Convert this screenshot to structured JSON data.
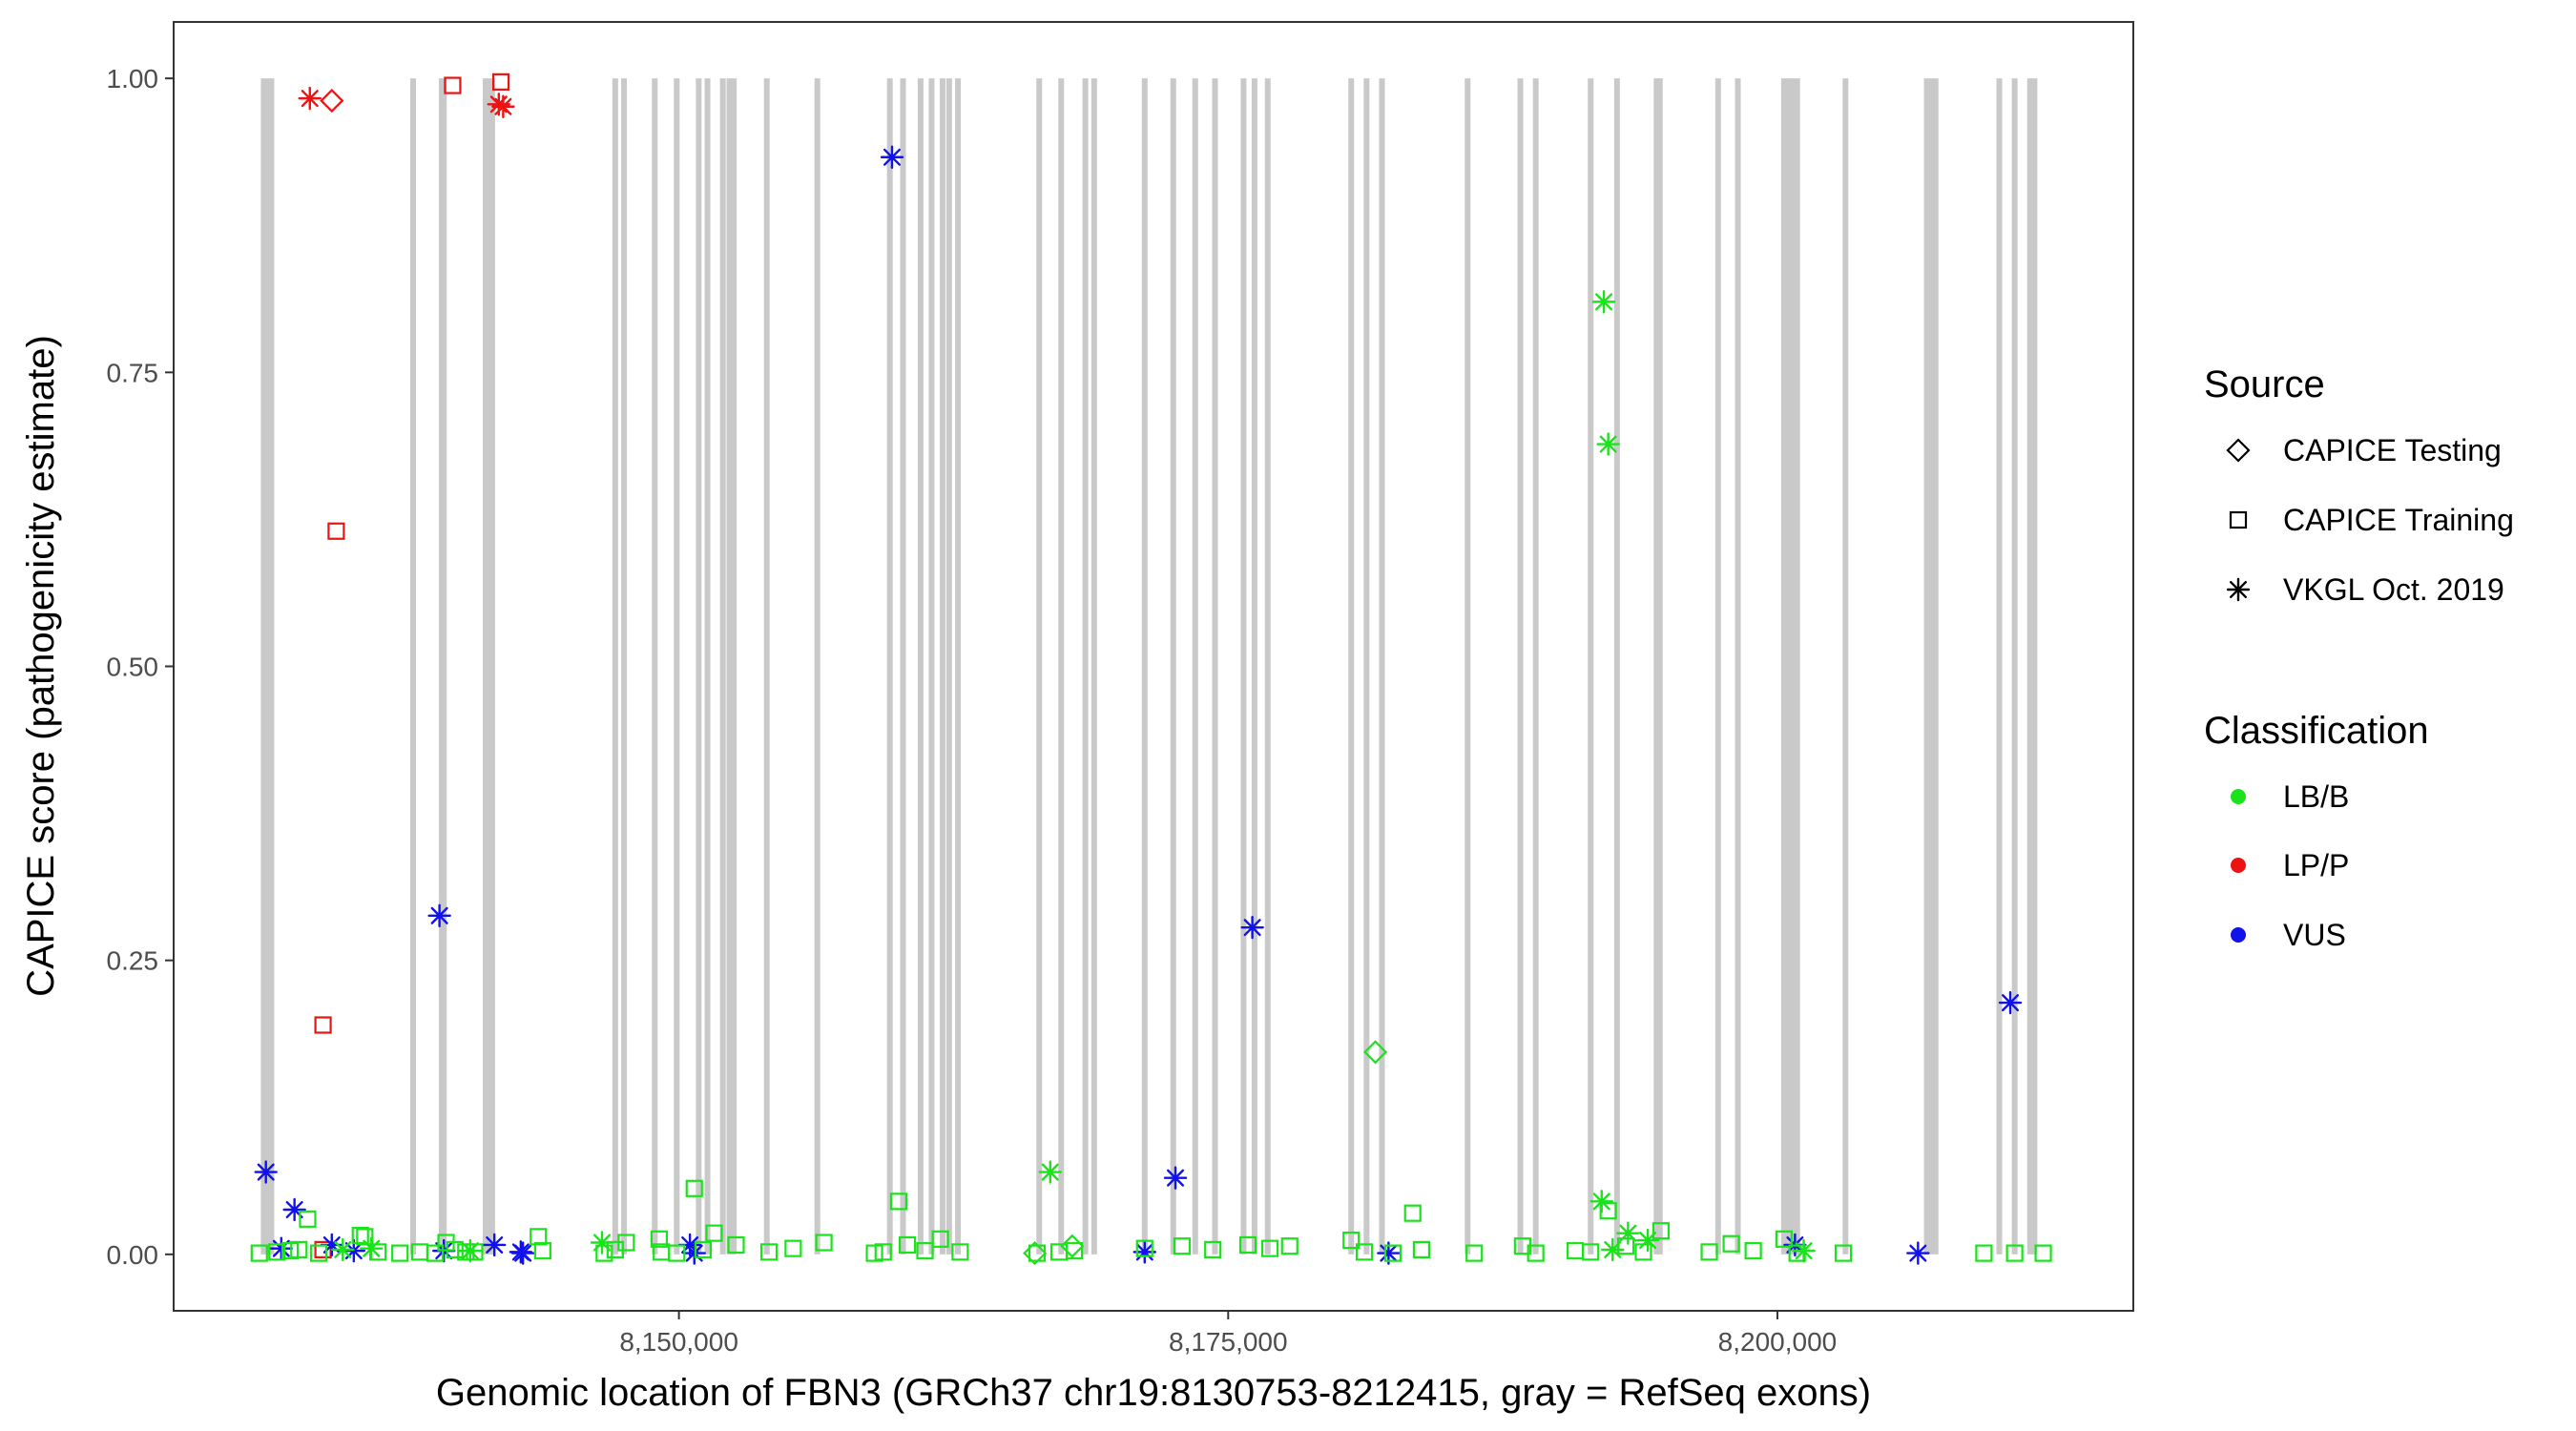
{
  "chart_data": {
    "type": "scatter",
    "xlabel": "Genomic location of FBN3 (GRCh37 chr19:8130753-8212415, gray = RefSeq exons)",
    "ylabel": "CAPICE score (pathogenicity estimate)",
    "xlim": [
      8127000,
      8216200
    ],
    "ylim": [
      -0.048,
      1.048
    ],
    "x_ticks": [
      {
        "value": 8150000,
        "label": "8,150,000"
      },
      {
        "value": 8175000,
        "label": "8,175,000"
      },
      {
        "value": 8200000,
        "label": "8,200,000"
      }
    ],
    "y_ticks": [
      {
        "value": 0.0,
        "label": "0.00"
      },
      {
        "value": 0.25,
        "label": "0.25"
      },
      {
        "value": 0.5,
        "label": "0.50"
      },
      {
        "value": 0.75,
        "label": "0.75"
      },
      {
        "value": 1.0,
        "label": "1.00"
      }
    ],
    "grid": false,
    "legend_placement": "right",
    "exons": [
      8131100,
      8131300,
      8131450,
      8137900,
      8139200,
      8139300,
      8141200,
      8141350,
      8141500,
      8147100,
      8147500,
      8148900,
      8149900,
      8150900,
      8151300,
      8152000,
      8152300,
      8152500,
      8154000,
      8156300,
      8159600,
      8160200,
      8161000,
      8161500,
      8162000,
      8162300,
      8162700,
      8166400,
      8167400,
      8168500,
      8168900,
      8171200,
      8172500,
      8173500,
      8174400,
      8175700,
      8176200,
      8176800,
      8180600,
      8181300,
      8182000,
      8185900,
      8188300,
      8189000,
      8191500,
      8192700,
      8194500,
      8194650,
      8197300,
      8198200,
      8200300,
      8200500,
      8200700,
      8200900,
      8203100,
      8206800,
      8207000,
      8207200,
      8210100,
      8210800,
      8211500,
      8211700
    ],
    "legend": {
      "source_title": "Source",
      "source_items": [
        {
          "shape": "diamond",
          "label": "CAPICE Testing"
        },
        {
          "shape": "square",
          "label": "CAPICE Training"
        },
        {
          "shape": "asterisk",
          "label": "VKGL Oct. 2019"
        }
      ],
      "class_title": "Classification",
      "class_items": [
        {
          "key": "LB/B",
          "label": "LB/B",
          "color": "#1be31b"
        },
        {
          "key": "LP/P",
          "label": "LP/P",
          "color": "#ec1313"
        },
        {
          "key": "VUS",
          "label": "VUS",
          "color": "#1111ec"
        }
      ]
    },
    "series": [
      {
        "classification": "LP/P",
        "source": "CAPICE Testing",
        "points": [
          [
            8134200,
            0.981
          ]
        ]
      },
      {
        "classification": "LP/P",
        "source": "CAPICE Training",
        "points": [
          [
            8139700,
            0.994
          ],
          [
            8141900,
            0.997
          ],
          [
            8134400,
            0.615
          ],
          [
            8133800,
            0.195
          ],
          [
            8133800,
            0.004
          ]
        ]
      },
      {
        "classification": "LP/P",
        "source": "VKGL Oct. 2019",
        "points": [
          [
            8133200,
            0.983
          ],
          [
            8141800,
            0.978
          ],
          [
            8142000,
            0.976
          ]
        ]
      },
      {
        "classification": "VUS",
        "source": "VKGL Oct. 2019",
        "points": [
          [
            8131200,
            0.07
          ],
          [
            8131900,
            0.005
          ],
          [
            8132500,
            0.038
          ],
          [
            8134200,
            0.008
          ],
          [
            8135200,
            0.003
          ],
          [
            8139100,
            0.288
          ],
          [
            8139300,
            0.003
          ],
          [
            8141600,
            0.008
          ],
          [
            8142800,
            0.002
          ],
          [
            8142900,
            0.001
          ],
          [
            8150500,
            0.008
          ],
          [
            8150700,
            0.001
          ],
          [
            8159700,
            0.933
          ],
          [
            8171200,
            0.002
          ],
          [
            8172600,
            0.065
          ],
          [
            8176100,
            0.278
          ],
          [
            8182300,
            0.001
          ],
          [
            8200800,
            0.008
          ],
          [
            8206400,
            0.001
          ],
          [
            8210600,
            0.214
          ]
        ]
      },
      {
        "classification": "LB/B",
        "source": "CAPICE Testing",
        "points": [
          [
            8167900,
            0.007
          ],
          [
            8181700,
            0.172
          ],
          [
            8166200,
            0.001
          ]
        ]
      },
      {
        "classification": "LB/B",
        "source": "CAPICE Training",
        "points": [
          [
            8130900,
            0.001
          ],
          [
            8131700,
            0.002
          ],
          [
            8132300,
            0.003
          ],
          [
            8132700,
            0.004
          ],
          [
            8133100,
            0.03
          ],
          [
            8133600,
            0.001
          ],
          [
            8135500,
            0.016
          ],
          [
            8135700,
            0.015
          ],
          [
            8136300,
            0.002
          ],
          [
            8137300,
            0.001
          ],
          [
            8138200,
            0.002
          ],
          [
            8138900,
            0.001
          ],
          [
            8139400,
            0.01
          ],
          [
            8139800,
            0.004
          ],
          [
            8140300,
            0.002
          ],
          [
            8140700,
            0.002
          ],
          [
            8143600,
            0.015
          ],
          [
            8143800,
            0.003
          ],
          [
            8146600,
            0.001
          ],
          [
            8147100,
            0.004
          ],
          [
            8147600,
            0.01
          ],
          [
            8149100,
            0.013
          ],
          [
            8149200,
            0.002
          ],
          [
            8149900,
            0.001
          ],
          [
            8150700,
            0.056
          ],
          [
            8151100,
            0.004
          ],
          [
            8151600,
            0.018
          ],
          [
            8152600,
            0.008
          ],
          [
            8154100,
            0.002
          ],
          [
            8155200,
            0.005
          ],
          [
            8156600,
            0.01
          ],
          [
            8158900,
            0.001
          ],
          [
            8159300,
            0.002
          ],
          [
            8160000,
            0.045
          ],
          [
            8160400,
            0.008
          ],
          [
            8161200,
            0.003
          ],
          [
            8161900,
            0.013
          ],
          [
            8162800,
            0.002
          ],
          [
            8166300,
            0.001
          ],
          [
            8167300,
            0.002
          ],
          [
            8168000,
            0.003
          ],
          [
            8171200,
            0.005
          ],
          [
            8172900,
            0.007
          ],
          [
            8174300,
            0.004
          ],
          [
            8175900,
            0.008
          ],
          [
            8176900,
            0.005
          ],
          [
            8177800,
            0.007
          ],
          [
            8180600,
            0.012
          ],
          [
            8181200,
            0.002
          ],
          [
            8182500,
            0.001
          ],
          [
            8183400,
            0.035
          ],
          [
            8183800,
            0.004
          ],
          [
            8186200,
            0.001
          ],
          [
            8188400,
            0.007
          ],
          [
            8189000,
            0.001
          ],
          [
            8190800,
            0.003
          ],
          [
            8191500,
            0.002
          ],
          [
            8192300,
            0.037
          ],
          [
            8193100,
            0.007
          ],
          [
            8193900,
            0.002
          ],
          [
            8194700,
            0.02
          ],
          [
            8196900,
            0.002
          ],
          [
            8197900,
            0.009
          ],
          [
            8198900,
            0.003
          ],
          [
            8200300,
            0.013
          ],
          [
            8200900,
            0.001
          ],
          [
            8203000,
            0.001
          ],
          [
            8209400,
            0.001
          ],
          [
            8210800,
            0.001
          ],
          [
            8212100,
            0.001
          ]
        ]
      },
      {
        "classification": "LB/B",
        "source": "VKGL Oct. 2019",
        "points": [
          [
            8134700,
            0.004
          ],
          [
            8136000,
            0.005
          ],
          [
            8140500,
            0.003
          ],
          [
            8146500,
            0.01
          ],
          [
            8166900,
            0.07
          ],
          [
            8192100,
            0.81
          ],
          [
            8192300,
            0.689
          ],
          [
            8192000,
            0.045
          ],
          [
            8193200,
            0.018
          ],
          [
            8194100,
            0.012
          ],
          [
            8192500,
            0.004
          ],
          [
            8201200,
            0.003
          ]
        ]
      }
    ]
  }
}
